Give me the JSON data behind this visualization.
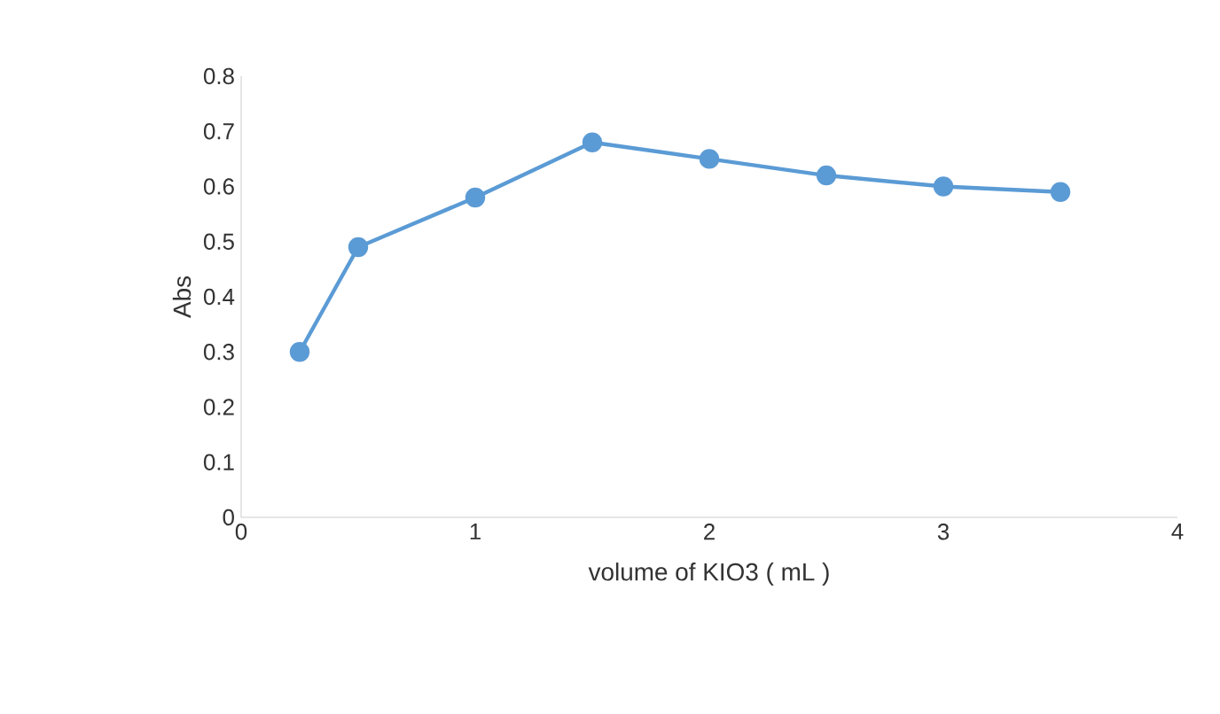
{
  "chart_data": {
    "type": "line",
    "xlabel": "volume of KIO3  ( mL )",
    "ylabel": "Abs",
    "x": [
      0.25,
      0.5,
      1,
      1.5,
      2,
      2.5,
      3,
      3.5
    ],
    "series": [
      {
        "color": "#5b9bd5",
        "values": [
          0.3,
          0.49,
          0.58,
          0.68,
          0.65,
          0.62,
          0.6,
          0.59
        ]
      }
    ],
    "xlim": [
      0,
      4
    ],
    "xticks": [
      0,
      1,
      2,
      3,
      4
    ],
    "ylim": [
      0,
      0.8
    ],
    "yticks": [
      0,
      0.1,
      0.2,
      0.3,
      0.4,
      0.5,
      0.6,
      0.7,
      0.8
    ],
    "marker": "circle",
    "line_style": "solid"
  }
}
